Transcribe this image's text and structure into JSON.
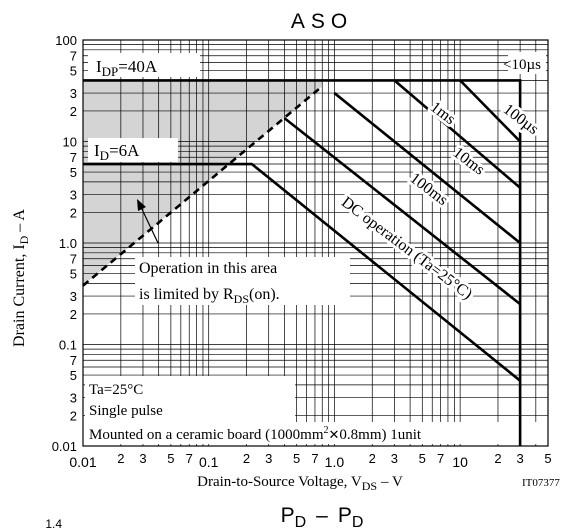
{
  "chart_data": {
    "type": "line",
    "title": "ASO",
    "xlabel": "Drain-to-Source Voltage, V",
    "xlabel_sub": "DS",
    "xlabel_unit": "–  V",
    "ylabel": "Drain Current, I",
    "ylabel_sub": "D",
    "ylabel_unit": "–  A",
    "figure_code": "IT07377",
    "x_scale": "log",
    "y_scale": "log",
    "xlim": [
      0.01,
      50
    ],
    "ylim": [
      0.01,
      100
    ],
    "grid": true,
    "x_decade_labels": [
      {
        "v": 0.01,
        "t": "0.01"
      },
      {
        "v": 0.1,
        "t": "0.1"
      },
      {
        "v": 1,
        "t": "1.0"
      },
      {
        "v": 10,
        "t": "10"
      }
    ],
    "x_minor_labels": [
      {
        "v": 0.02,
        "t": "2"
      },
      {
        "v": 0.03,
        "t": "3"
      },
      {
        "v": 0.05,
        "t": "5"
      },
      {
        "v": 0.07,
        "t": "7"
      },
      {
        "v": 0.2,
        "t": "2"
      },
      {
        "v": 0.3,
        "t": "3"
      },
      {
        "v": 0.5,
        "t": "5"
      },
      {
        "v": 0.7,
        "t": "7"
      },
      {
        "v": 2,
        "t": "2"
      },
      {
        "v": 3,
        "t": "3"
      },
      {
        "v": 5,
        "t": "5"
      },
      {
        "v": 7,
        "t": "7"
      },
      {
        "v": 20,
        "t": "2"
      },
      {
        "v": 30,
        "t": "3"
      },
      {
        "v": 50,
        "t": "5"
      }
    ],
    "y_decade_labels": [
      {
        "v": 0.01,
        "t": "0.01"
      },
      {
        "v": 0.1,
        "t": "0.1"
      },
      {
        "v": 1,
        "t": "1.0"
      },
      {
        "v": 10,
        "t": "10"
      },
      {
        "v": 100,
        "t": "100"
      }
    ],
    "y_minor_labels": [
      {
        "v": 0.02,
        "t": "2"
      },
      {
        "v": 0.03,
        "t": "3"
      },
      {
        "v": 0.05,
        "t": "5"
      },
      {
        "v": 0.07,
        "t": "7"
      },
      {
        "v": 0.2,
        "t": "2"
      },
      {
        "v": 0.3,
        "t": "3"
      },
      {
        "v": 0.5,
        "t": "5"
      },
      {
        "v": 0.7,
        "t": "7"
      },
      {
        "v": 2,
        "t": "2"
      },
      {
        "v": 3,
        "t": "3"
      },
      {
        "v": 5,
        "t": "5"
      },
      {
        "v": 7,
        "t": "7"
      },
      {
        "v": 20,
        "t": "2"
      },
      {
        "v": 30,
        "t": "3"
      },
      {
        "v": 50,
        "t": "5"
      },
      {
        "v": 70,
        "t": "7"
      }
    ],
    "series": [
      {
        "name": "<10µs",
        "points": [
          [
            0.01,
            40
          ],
          [
            30,
            40
          ],
          [
            30,
            0.01
          ]
        ]
      },
      {
        "name": "1ms",
        "points": [
          [
            3,
            40
          ],
          [
            30,
            3.5
          ]
        ]
      },
      {
        "name": "100µs",
        "points": [
          [
            10,
            40
          ],
          [
            30,
            10
          ]
        ]
      },
      {
        "name": "10ms",
        "points": [
          [
            1,
            30
          ],
          [
            30,
            1
          ]
        ]
      },
      {
        "name": "100ms",
        "points": [
          [
            0.4,
            17
          ],
          [
            30,
            0.25
          ]
        ]
      },
      {
        "name": "DC operation (Ta=25°C)",
        "points": [
          [
            0.01,
            6
          ],
          [
            0.22,
            6
          ],
          [
            30,
            0.044
          ]
        ]
      },
      {
        "name": "RDS(on) limit",
        "points": [
          [
            0.01,
            0.38
          ],
          [
            0.8,
            35
          ]
        ]
      }
    ],
    "shaded_region": {
      "points": [
        [
          0.01,
          0.38
        ],
        [
          0.01,
          40
        ],
        [
          0.8,
          40
        ],
        [
          0.8,
          35
        ]
      ],
      "color": "#d4d4d4"
    },
    "annotations": {
      "idp": {
        "main": "I",
        "sub": "DP",
        "rest": "=40A"
      },
      "id": {
        "main": "I",
        "sub": "D",
        "rest": "=6A"
      },
      "lt10us": "<10µs",
      "l1ms": "1ms",
      "l100us": "100µs",
      "l10ms": "10ms",
      "l100ms": "100ms",
      "dc": "DC operation (Ta=25°C)",
      "op_line1": "Operation in this area",
      "op_line2_a": "is limited by R",
      "op_line2_sub": "DS",
      "op_line2_b": "(on).",
      "cond1": "Ta=25°C",
      "cond2": "Single pulse",
      "cond3_a": "Mounted on a ceramic board (1000mm",
      "cond3_sup": "2",
      "cond3_x": "✕",
      "cond3_b": "0.8mm) 1unit"
    }
  },
  "next_chart_title": {
    "a": "P",
    "a_sub": "D",
    "dash": "–",
    "b": "P",
    "b_sub": "D"
  },
  "next_chart_tick": "1.4"
}
